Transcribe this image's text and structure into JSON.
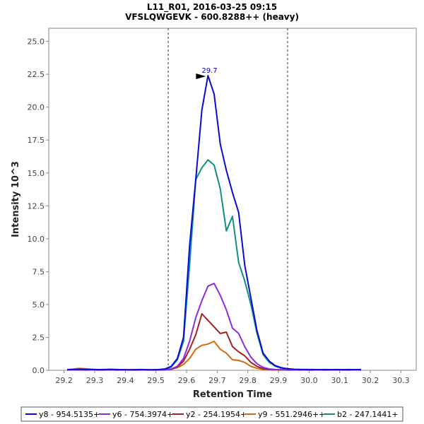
{
  "chart_data": {
    "type": "line",
    "title": "L11_R01, 2016-03-25 09:15",
    "subtitle": "VFSLQWGEVK - 600.8288++ (heavy)",
    "xlabel": "Retention Time",
    "ylabel": "Intensity 10^3",
    "xlim": [
      29.15,
      30.35
    ],
    "ylim": [
      0,
      26
    ],
    "x_ticks": [
      "29.2",
      "29.3",
      "29.4",
      "29.5",
      "29.6",
      "29.7",
      "29.8",
      "29.9",
      "30.0",
      "30.1",
      "30.2",
      "30.3"
    ],
    "y_ticks": [
      "0.0",
      "2.5",
      "5.0",
      "7.5",
      "10.0",
      "12.5",
      "15.0",
      "17.5",
      "20.0",
      "22.5",
      "25.0"
    ],
    "boundaries": [
      29.54,
      29.93
    ],
    "peak_annotation": {
      "label": "29.7",
      "x": 29.67,
      "y": 22.4
    },
    "grid": false,
    "legend_position": "bottom",
    "x": [
      29.21,
      29.23,
      29.25,
      29.27,
      29.29,
      29.31,
      29.33,
      29.35,
      29.37,
      29.39,
      29.41,
      29.43,
      29.45,
      29.47,
      29.49,
      29.51,
      29.53,
      29.55,
      29.57,
      29.59,
      29.61,
      29.63,
      29.65,
      29.67,
      29.69,
      29.71,
      29.73,
      29.75,
      29.77,
      29.79,
      29.81,
      29.83,
      29.85,
      29.87,
      29.89,
      29.91,
      29.93,
      29.95,
      29.97,
      29.99,
      30.01,
      30.03,
      30.05,
      30.07,
      30.09,
      30.11,
      30.13,
      30.15,
      30.17
    ],
    "series": [
      {
        "name": "y8 - 954.5135+",
        "color": "#0a0ad6",
        "values": [
          0.05,
          0.06,
          0.08,
          0.07,
          0.06,
          0.05,
          0.06,
          0.07,
          0.06,
          0.05,
          0.04,
          0.05,
          0.06,
          0.05,
          0.04,
          0.06,
          0.1,
          0.3,
          0.9,
          2.5,
          9.5,
          14.5,
          19.8,
          22.4,
          21.0,
          17.2,
          15.2,
          13.5,
          12.0,
          8.0,
          5.5,
          3.0,
          1.3,
          0.7,
          0.35,
          0.2,
          0.12,
          0.08,
          0.07,
          0.06,
          0.06,
          0.05,
          0.06,
          0.05,
          0.06,
          0.05,
          0.06,
          0.05,
          0.06
        ]
      },
      {
        "name": "y6 - 754.3974+",
        "color": "#8a2be2",
        "values": [
          0.02,
          0.03,
          0.04,
          0.03,
          0.03,
          0.02,
          0.03,
          0.03,
          0.02,
          0.03,
          0.02,
          0.02,
          0.03,
          0.02,
          0.02,
          0.03,
          0.04,
          0.1,
          0.3,
          0.9,
          2.2,
          4.0,
          5.3,
          6.4,
          6.6,
          5.7,
          4.6,
          3.2,
          2.8,
          1.8,
          1.0,
          0.5,
          0.22,
          0.1,
          0.06,
          0.04,
          0.03,
          0.03,
          0.02,
          0.03,
          0.02,
          0.03,
          0.02,
          0.03,
          0.02,
          0.03,
          0.02,
          0.03,
          0.02
        ]
      },
      {
        "name": "y2 - 254.1954+",
        "color": "#a52020",
        "values": [
          0.02,
          0.03,
          0.03,
          0.02,
          0.03,
          0.02,
          0.02,
          0.03,
          0.02,
          0.02,
          0.03,
          0.02,
          0.02,
          0.03,
          0.02,
          0.02,
          0.03,
          0.08,
          0.25,
          0.7,
          1.6,
          2.7,
          4.3,
          3.8,
          3.3,
          2.8,
          2.9,
          1.8,
          1.4,
          1.1,
          0.6,
          0.3,
          0.12,
          0.06,
          0.04,
          0.03,
          0.02,
          0.02,
          0.03,
          0.02,
          0.02,
          0.03,
          0.02,
          0.02,
          0.03,
          0.02,
          0.02,
          0.03,
          0.02
        ]
      },
      {
        "name": "y9 - 551.2946++",
        "color": "#d86a10",
        "values": [
          0.05,
          0.1,
          0.15,
          0.12,
          0.08,
          0.06,
          0.05,
          0.08,
          0.06,
          0.04,
          0.03,
          0.05,
          0.04,
          0.03,
          0.04,
          0.03,
          0.05,
          0.08,
          0.2,
          0.45,
          0.9,
          1.6,
          1.9,
          2.0,
          2.2,
          1.6,
          1.3,
          0.8,
          0.75,
          0.6,
          0.3,
          0.15,
          0.06,
          0.04,
          0.03,
          0.03,
          0.02,
          0.03,
          0.02,
          0.03,
          0.02,
          0.03,
          0.02,
          0.03,
          0.02,
          0.03,
          0.02,
          0.03,
          0.04
        ]
      },
      {
        "name": "b2 - 247.1441+",
        "color": "#109080",
        "values": [
          0.04,
          0.05,
          0.06,
          0.05,
          0.05,
          0.04,
          0.05,
          0.05,
          0.04,
          0.05,
          0.04,
          0.04,
          0.05,
          0.04,
          0.04,
          0.05,
          0.08,
          0.25,
          0.8,
          2.2,
          8.0,
          14.5,
          15.4,
          16.0,
          15.6,
          13.8,
          10.6,
          11.7,
          8.2,
          6.8,
          5.0,
          2.8,
          1.2,
          0.6,
          0.3,
          0.15,
          0.1,
          0.06,
          0.05,
          0.05,
          0.04,
          0.05,
          0.04,
          0.05,
          0.04,
          0.05,
          0.04,
          0.05,
          0.04
        ]
      }
    ]
  }
}
